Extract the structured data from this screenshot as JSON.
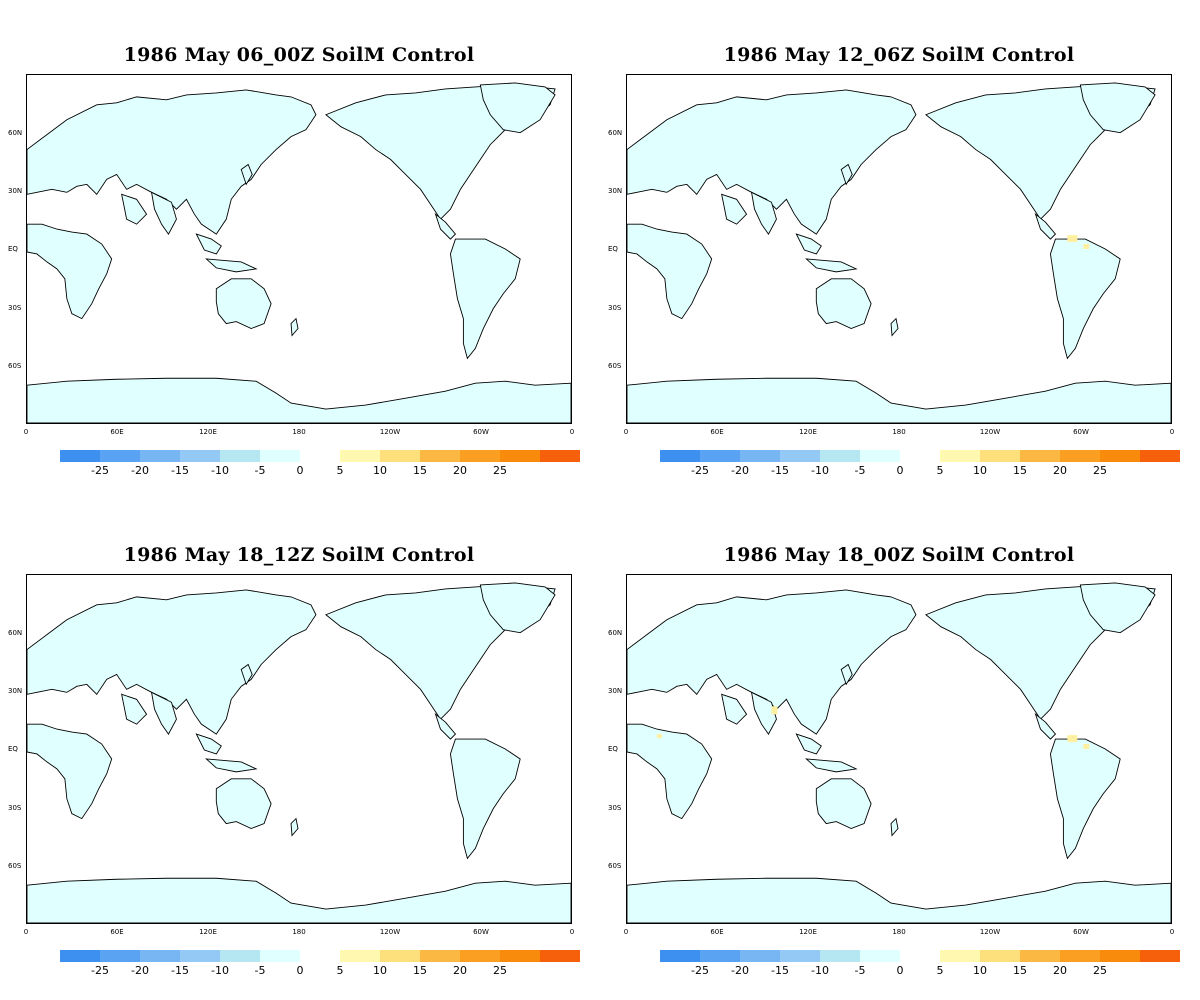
{
  "panels": [
    {
      "title": "1986 May 06_00Z SoilM Control",
      "anomalies": []
    },
    {
      "title": "1986 May 12_06Z SoilM Control",
      "anomalies": [
        "south-america-north"
      ]
    },
    {
      "title": "1986 May 18_12Z SoilM Control",
      "anomalies": []
    },
    {
      "title": "1986 May 18_00Z SoilM Control",
      "anomalies": [
        "southeast-asia",
        "south-america-north",
        "africa-west"
      ]
    }
  ],
  "lat_ticks": [
    "60N",
    "30N",
    "EQ",
    "30S",
    "60S"
  ],
  "lon_ticks": [
    "0",
    "60E",
    "120E",
    "180",
    "120W",
    "60W",
    "0"
  ],
  "colorbar": {
    "negative": {
      "colors": [
        "#3d8ff0",
        "#5aa3f2",
        "#77b6f3",
        "#95c9f5",
        "#b4e7f2",
        "#e0ffff"
      ],
      "labels": [
        "-25",
        "-20",
        "-15",
        "-10",
        "-5",
        "0"
      ]
    },
    "positive": {
      "colors": [
        "#fef8b0",
        "#fde07b",
        "#fbb842",
        "#fa9f22",
        "#f88a0c",
        "#f7600a"
      ],
      "labels": [
        "5",
        "10",
        "15",
        "20",
        "25"
      ]
    }
  },
  "colors": {
    "land_fill": "#e0ffff",
    "positive_anomaly": "#fef0a0",
    "coastline": "#000000"
  }
}
